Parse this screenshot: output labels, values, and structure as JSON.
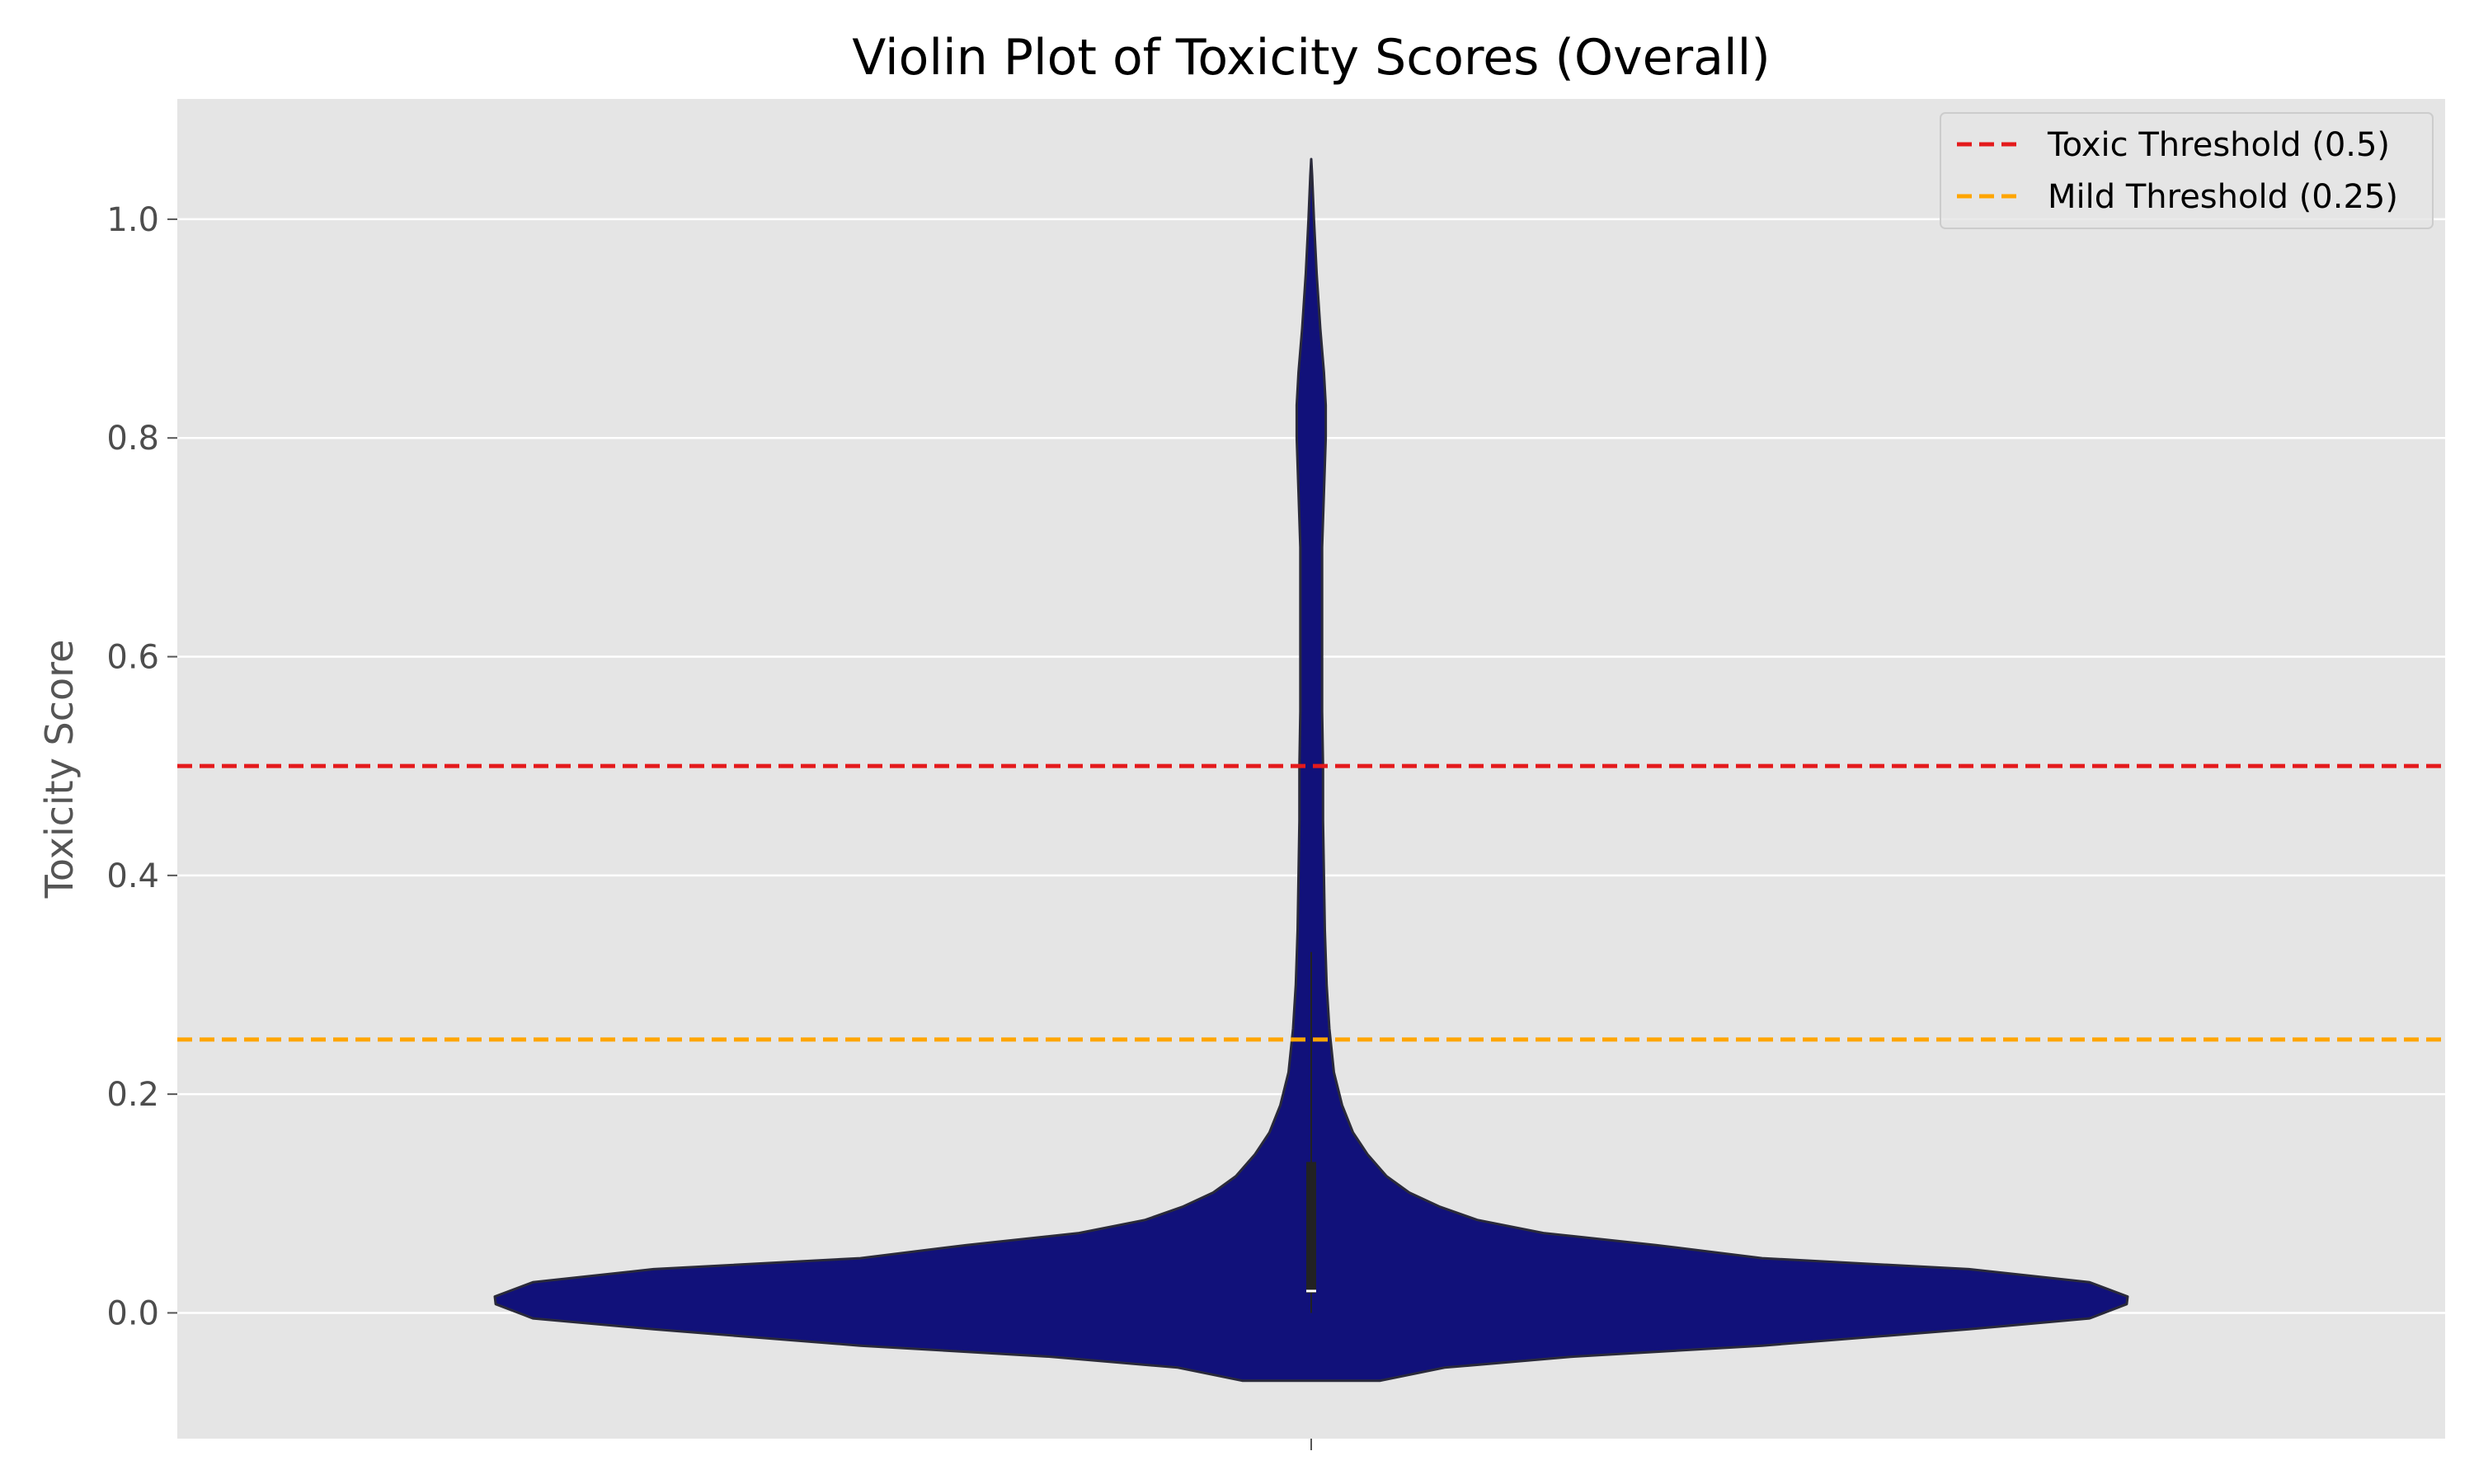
{
  "chart_data": {
    "type": "violin",
    "title": "Violin Plot of Toxicity Scores (Overall)",
    "xlabel": "",
    "ylabel": "Toxicity Score",
    "ylim": [
      -0.115,
      1.11
    ],
    "yticks": [
      0.0,
      0.2,
      0.4,
      0.6,
      0.8,
      1.0
    ],
    "ytick_labels": [
      "0.0",
      "0.2",
      "0.4",
      "0.6",
      "0.8",
      "1.0"
    ],
    "grid": true,
    "legend_position": "top-right",
    "colors": {
      "violin_fill": "#11117a",
      "violin_edge": "#2a2a3a",
      "background": "#e5e5e5",
      "grid": "#ffffff",
      "toxic_threshold": "#e41a1c",
      "mild_threshold": "#ffa500",
      "box": "#222222",
      "median": "#ffffff"
    },
    "density": {
      "y": [
        -0.062,
        -0.05,
        -0.04,
        -0.03,
        -0.015,
        -0.005,
        0.008,
        0.015,
        0.028,
        0.04,
        0.05,
        0.062,
        0.073,
        0.085,
        0.097,
        0.11,
        0.125,
        0.145,
        0.165,
        0.19,
        0.22,
        0.26,
        0.3,
        0.35,
        0.4,
        0.45,
        0.5,
        0.55,
        0.6,
        0.65,
        0.7,
        0.75,
        0.8,
        0.83,
        0.86,
        0.9,
        0.95,
        1.0,
        1.04,
        1.055
      ],
      "half_width": [
        0.076,
        0.147,
        0.289,
        0.497,
        0.725,
        0.858,
        0.899,
        0.9,
        0.858,
        0.725,
        0.497,
        0.38,
        0.256,
        0.183,
        0.142,
        0.108,
        0.083,
        0.062,
        0.046,
        0.034,
        0.025,
        0.02,
        0.017,
        0.015,
        0.014,
        0.013,
        0.013,
        0.012,
        0.012,
        0.012,
        0.012,
        0.014,
        0.016,
        0.016,
        0.014,
        0.01,
        0.006,
        0.003,
        0.001,
        0.0
      ]
    },
    "box": {
      "q1": 0.018,
      "median": 0.02,
      "q3": 0.138,
      "whisker_low": 0.0,
      "whisker_high": 0.33
    },
    "thresholds": [
      {
        "name": "Toxic Threshold (0.5)",
        "value": 0.5,
        "color": "#e41a1c"
      },
      {
        "name": "Mild Threshold (0.25)",
        "value": 0.25,
        "color": "#ffa500"
      }
    ]
  }
}
